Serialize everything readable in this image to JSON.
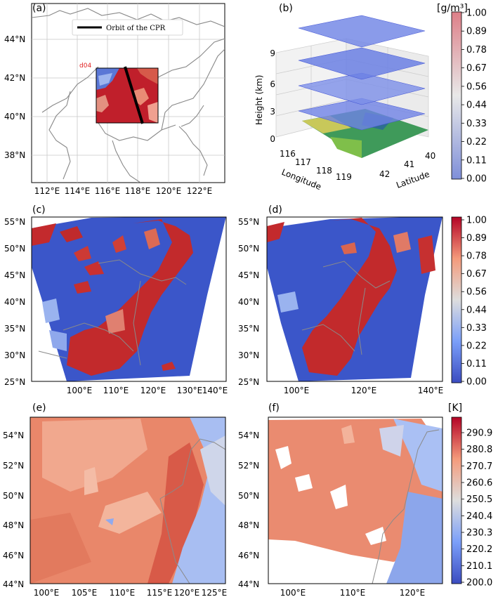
{
  "panels": {
    "a": {
      "label": "(a)",
      "legend": "Orbit of the CPR",
      "domain_label": "d04",
      "xticks": [
        "112°E",
        "114°E",
        "116°E",
        "118°E",
        "120°E",
        "122°E"
      ],
      "yticks": [
        "44°N",
        "42°N",
        "40°N",
        "38°N"
      ]
    },
    "b": {
      "label": "(b)",
      "zlabel": "Height (km)",
      "xlabel": "Longitude",
      "ylabel": "Latitude",
      "zticks": [
        "9",
        "6",
        "3",
        "0"
      ],
      "xticks": [
        "116",
        "117",
        "118",
        "119"
      ],
      "yticks": [
        "40",
        "41",
        "42"
      ]
    },
    "c": {
      "label": "(c)",
      "xticks": [
        "100°E",
        "110°E",
        "120°E",
        "130°E",
        "140°E"
      ],
      "yticks": [
        "55°N",
        "50°N",
        "45°N",
        "40°N",
        "35°N",
        "30°N",
        "25°N"
      ]
    },
    "d": {
      "label": "(d)",
      "xticks": [
        "100°E",
        "120°E",
        "140°E"
      ],
      "yticks": [
        "55°N",
        "50°N",
        "45°N",
        "40°N",
        "35°N",
        "30°N",
        "25°N"
      ]
    },
    "e": {
      "label": "(e)",
      "xticks": [
        "100°E",
        "105°E",
        "110°E",
        "115°E",
        "120°E",
        "125°E"
      ],
      "yticks": [
        "54°N",
        "52°N",
        "50°N",
        "48°N",
        "46°N",
        "44°N"
      ]
    },
    "f": {
      "label": "(f)",
      "xticks": [
        "100°E",
        "110°E",
        "120°E"
      ],
      "yticks": [
        "54°N",
        "52°N",
        "50°N",
        "48°N",
        "46°N",
        "44°N"
      ]
    }
  },
  "colorbars": {
    "top": {
      "unit": "[g/m³]",
      "ticks": [
        "1.00",
        "0.89",
        "0.78",
        "0.67",
        "0.56",
        "0.44",
        "0.33",
        "0.22",
        "0.11",
        "0.00"
      ]
    },
    "mid": {
      "ticks": [
        "1.00",
        "0.89",
        "0.78",
        "0.67",
        "0.56",
        "0.44",
        "0.33",
        "0.22",
        "0.11",
        "0.00"
      ]
    },
    "bottom": {
      "unit": "[K]",
      "ticks": [
        "290.9",
        "280.8",
        "270.7",
        "260.6",
        "250.5",
        "240.4",
        "230.3",
        "220.2",
        "210.1",
        "200.0"
      ]
    }
  },
  "chart_data": [
    {
      "panel": "a",
      "type": "map",
      "x_range_deg_e": [
        111.5,
        123.5
      ],
      "y_range_deg_n": [
        36.5,
        45.5
      ],
      "domain_box_deg": {
        "lon": [
          115.7,
          120.3
        ],
        "lat": [
          39.6,
          42.5
        ]
      },
      "orbit_line_deg": [
        [
          117.8,
          42.6
        ],
        [
          118.9,
          39.6
        ]
      ],
      "grid": true
    },
    {
      "panel": "b",
      "type": "3d-layers",
      "layer_heights_km": [
        1.5,
        3.5,
        6.5,
        9
      ],
      "x_range": [
        116,
        119.5
      ],
      "y_range": [
        39.5,
        42.5
      ],
      "z_range": [
        0,
        9
      ]
    },
    {
      "panel": "c",
      "type": "heatmap",
      "colormap": "coolwarm",
      "clim": [
        0,
        1
      ],
      "x_range_deg_e": [
        93,
        143
      ],
      "y_range_deg_n": [
        25,
        56
      ]
    },
    {
      "panel": "d",
      "type": "heatmap",
      "colormap": "coolwarm",
      "clim": [
        0,
        1
      ],
      "x_range_deg_e": [
        90,
        143
      ],
      "y_range_deg_n": [
        25,
        56
      ]
    },
    {
      "panel": "e",
      "type": "heatmap",
      "colormap": "coolwarm",
      "clim": [
        200,
        295
      ],
      "x_range_deg_e": [
        98,
        125
      ],
      "y_range_deg_n": [
        44,
        55
      ]
    },
    {
      "panel": "f",
      "type": "heatmap",
      "colormap": "coolwarm",
      "clim": [
        200,
        295
      ],
      "x_range_deg_e": [
        96,
        125
      ],
      "y_range_deg_n": [
        44,
        55
      ]
    }
  ],
  "colors": {
    "high": "#c0282b",
    "mid_high": "#e77a62",
    "neutral": "#dddddd",
    "mid_low": "#8db0fe",
    "low": "#3d55c6",
    "border": "#888888"
  }
}
